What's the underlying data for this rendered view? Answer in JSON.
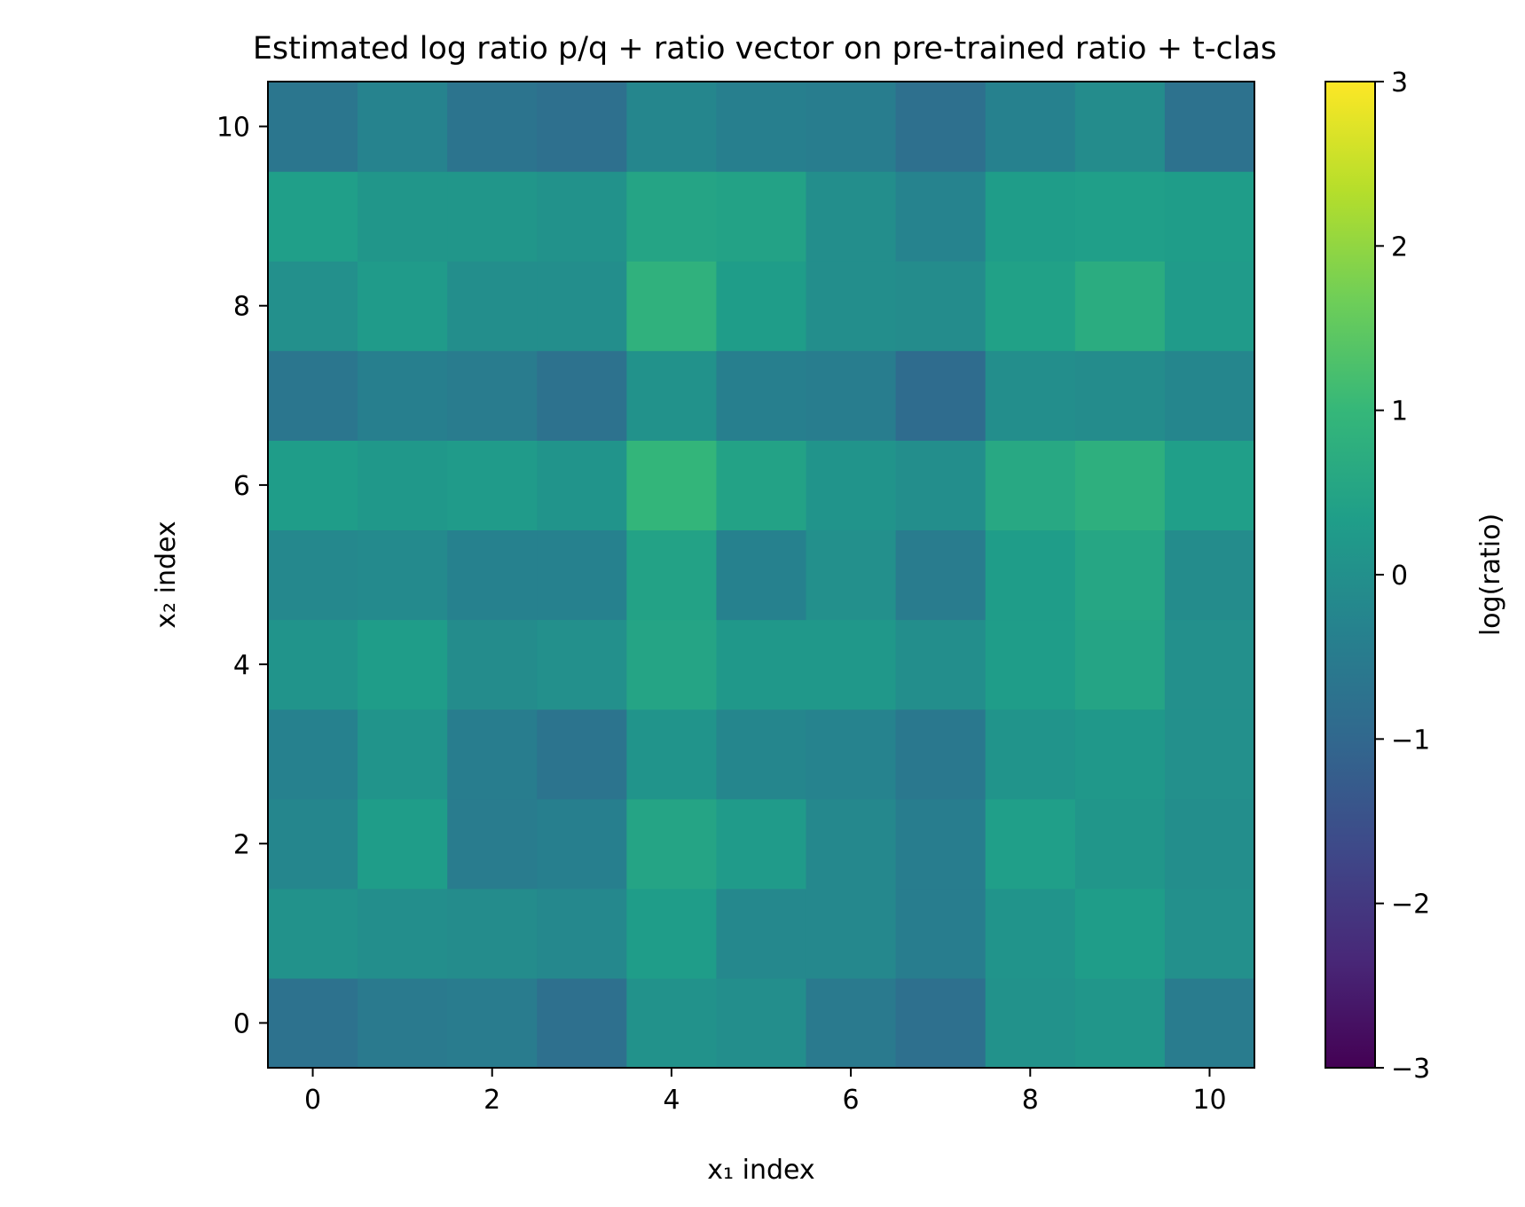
{
  "chart_data": {
    "type": "heatmap",
    "title": "Estimated log ratio p/q + ratio vector on pre-trained ratio + t-clas",
    "xlabel": "x₁ index",
    "ylabel": "x₂ index",
    "colorbar_label": "log(ratio)",
    "colormap": "viridis",
    "vmin": -3,
    "vmax": 3,
    "xlim": [
      -0.5,
      10.5
    ],
    "ylim": [
      -0.5,
      10.5
    ],
    "x_ticks": [
      0,
      2,
      4,
      6,
      8,
      10
    ],
    "y_ticks": [
      0,
      2,
      4,
      6,
      8,
      10
    ],
    "colorbar_ticks": [
      -3,
      -2,
      -1,
      0,
      1,
      2,
      3
    ],
    "colorbar_tick_labels": [
      "−3",
      "−2",
      "−1",
      "0",
      "1",
      "2",
      "3"
    ],
    "grid": false,
    "rows_description": "values[j][i] is the cell at x₂ index j (row) and x₁ index i (column)",
    "values": [
      [
        -0.75,
        -0.55,
        -0.5,
        -0.8,
        0.05,
        -0.05,
        -0.55,
        -0.8,
        0.05,
        0.15,
        -0.5
      ],
      [
        0.05,
        -0.05,
        -0.1,
        -0.2,
        0.3,
        -0.2,
        -0.2,
        -0.45,
        0.1,
        0.3,
        0.0
      ],
      [
        -0.25,
        0.3,
        -0.5,
        -0.4,
        0.5,
        0.25,
        -0.2,
        -0.45,
        0.35,
        0.15,
        -0.05
      ],
      [
        -0.35,
        0.1,
        -0.45,
        -0.7,
        0.1,
        -0.25,
        -0.3,
        -0.6,
        0.1,
        0.2,
        0.0
      ],
      [
        0.1,
        0.3,
        -0.1,
        0.0,
        0.5,
        0.2,
        0.2,
        -0.05,
        0.3,
        0.5,
        0.0
      ],
      [
        -0.2,
        -0.15,
        -0.35,
        -0.35,
        0.45,
        -0.35,
        0.0,
        -0.5,
        0.3,
        0.55,
        -0.1
      ],
      [
        0.3,
        0.2,
        0.25,
        0.1,
        0.95,
        0.45,
        0.1,
        -0.05,
        0.6,
        0.8,
        0.35
      ],
      [
        -0.65,
        -0.4,
        -0.5,
        -0.75,
        0.05,
        -0.4,
        -0.45,
        -0.9,
        -0.05,
        -0.1,
        -0.25
      ],
      [
        0.0,
        0.25,
        -0.05,
        -0.05,
        0.85,
        0.3,
        -0.05,
        -0.1,
        0.4,
        0.7,
        0.25
      ],
      [
        0.35,
        0.15,
        0.15,
        0.05,
        0.5,
        0.45,
        -0.05,
        -0.3,
        0.3,
        0.35,
        0.3
      ],
      [
        -0.65,
        -0.3,
        -0.7,
        -0.8,
        -0.25,
        -0.4,
        -0.45,
        -0.8,
        -0.35,
        -0.1,
        -0.75
      ]
    ]
  }
}
